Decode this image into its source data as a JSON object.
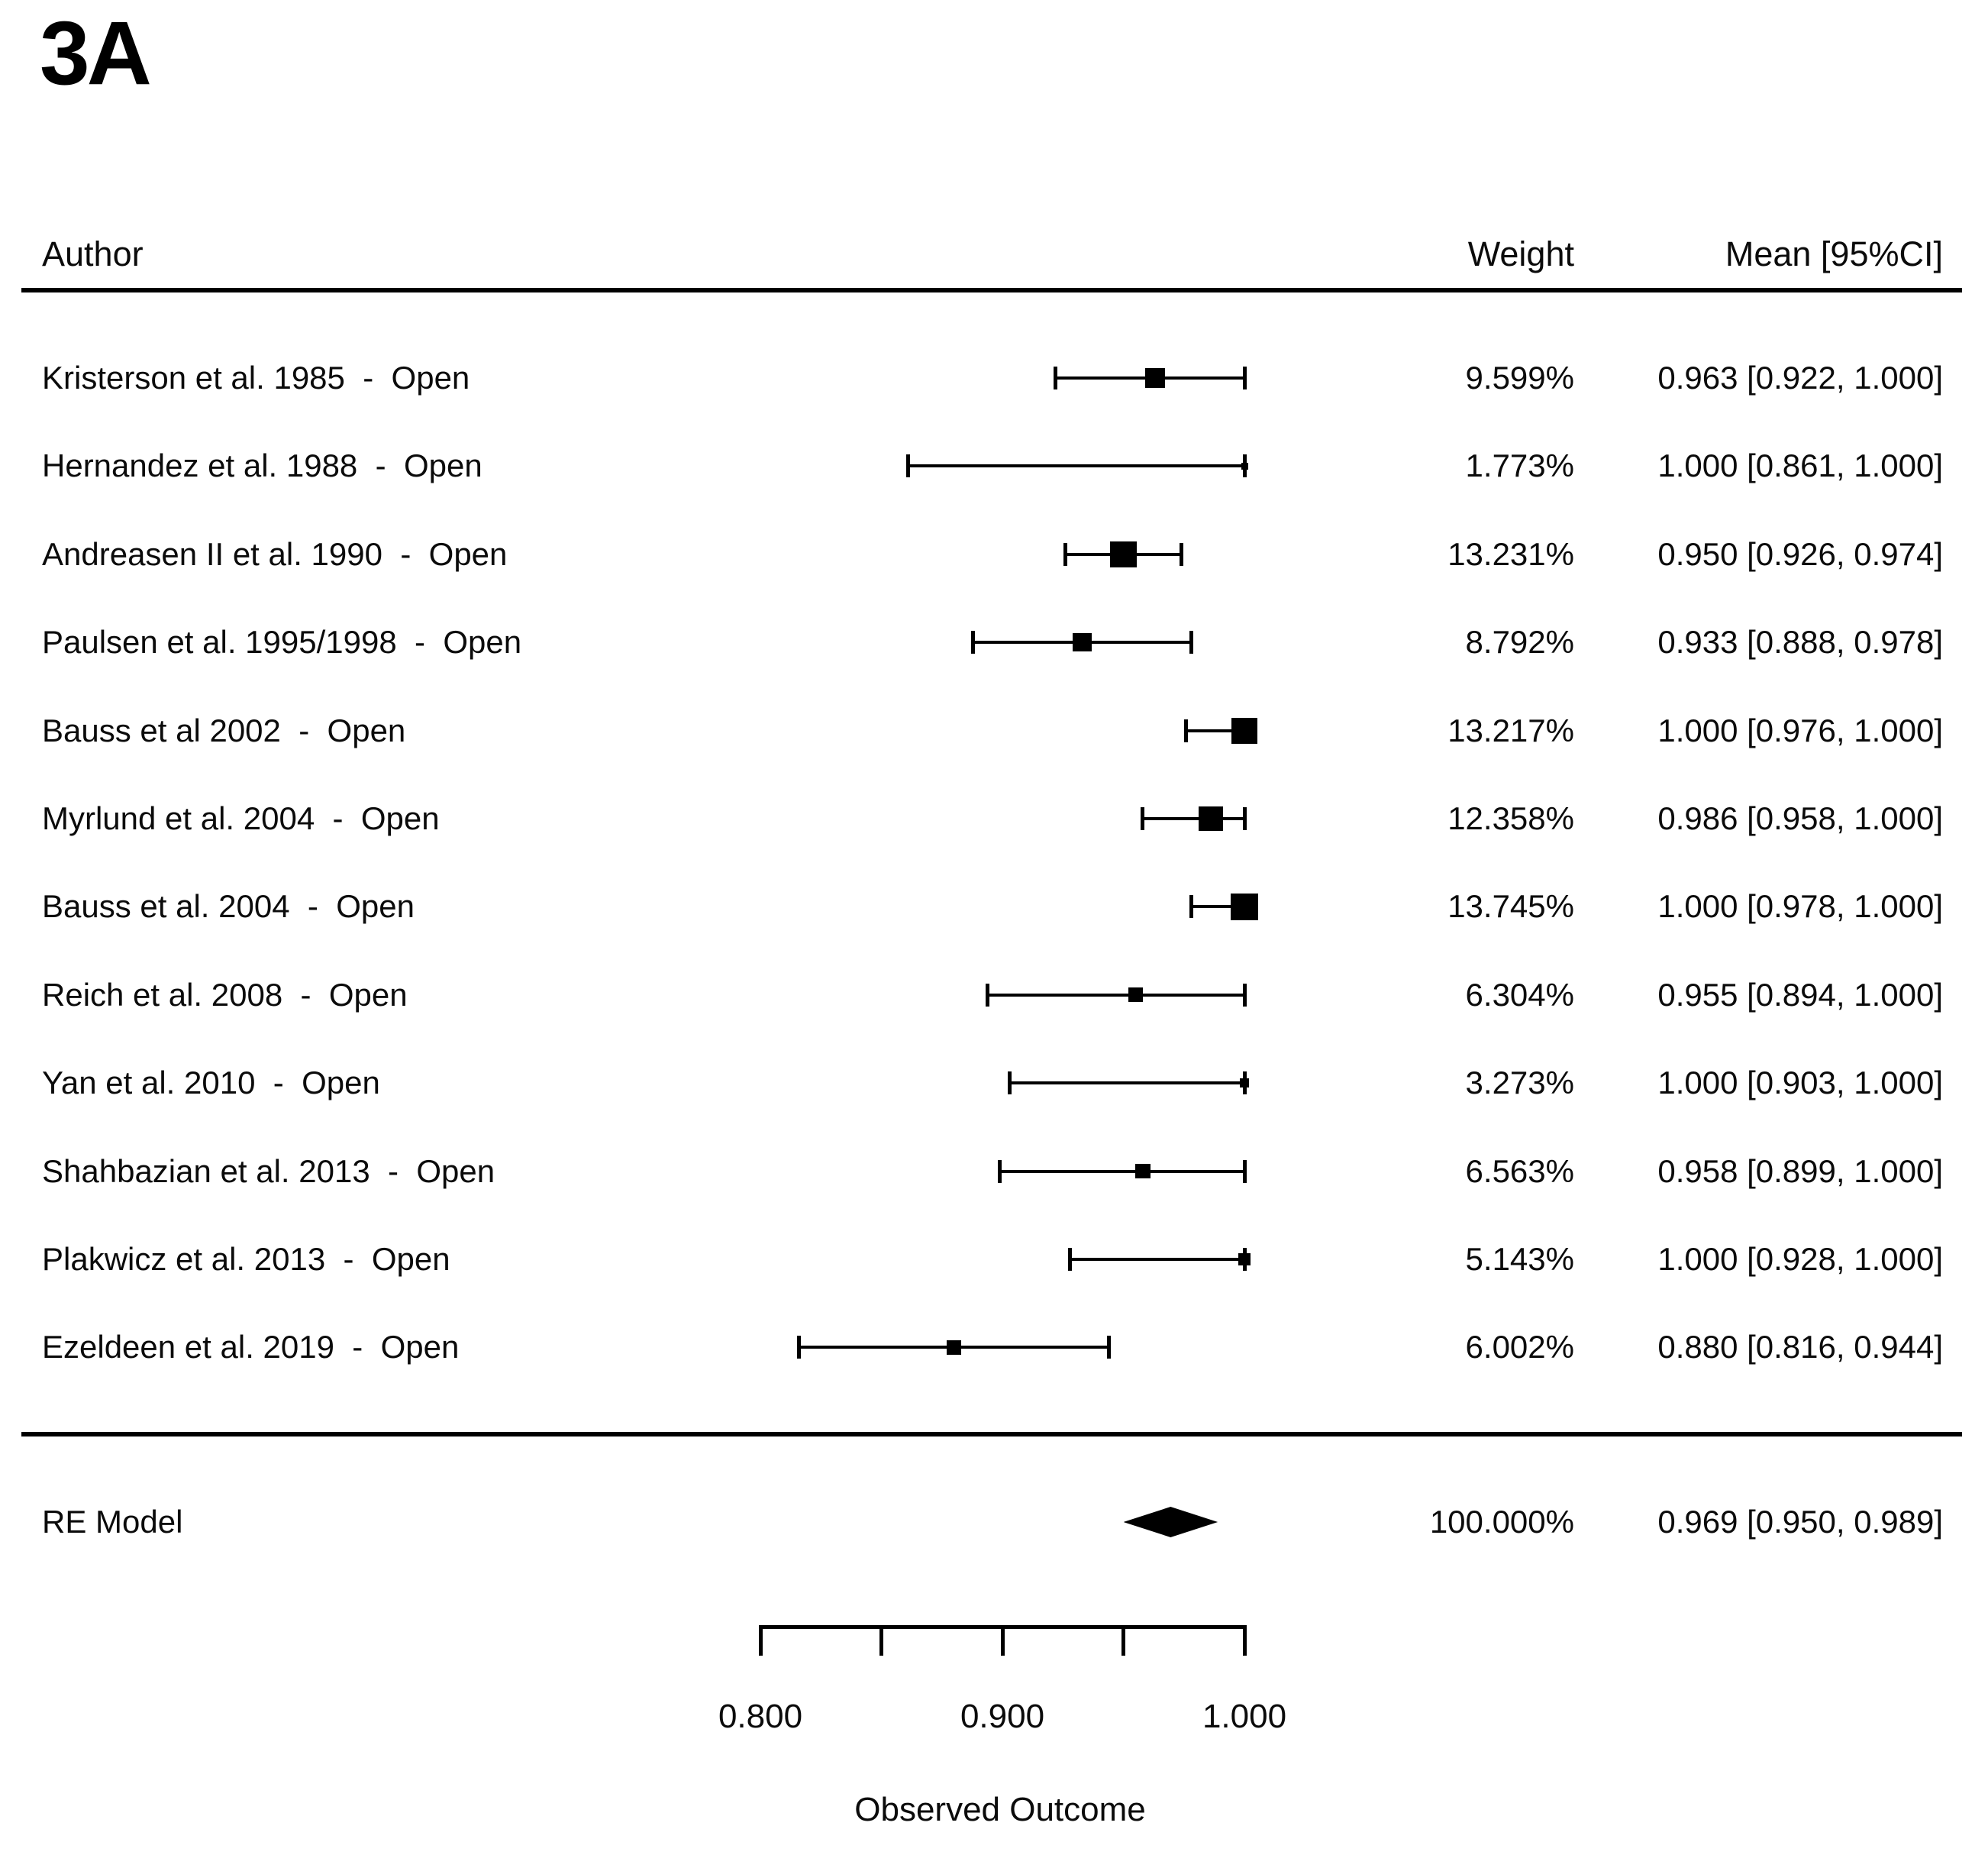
{
  "figure": {
    "label": "3A"
  },
  "table": {
    "headers": {
      "author": "Author",
      "weight": "Weight",
      "mean": "Mean [95%CI]"
    }
  },
  "chart_data": {
    "type": "forest",
    "title": "3A",
    "xlabel": "Observed Outcome",
    "x_axis": {
      "min": 0.8,
      "max": 1.0,
      "ticks": [
        0.8,
        0.85,
        0.9,
        0.95,
        1.0
      ],
      "labeled_ticks": [
        {
          "value": 0.8,
          "label": "0.800"
        },
        {
          "value": 0.9,
          "label": "0.900"
        },
        {
          "value": 1.0,
          "label": "1.000"
        }
      ],
      "grid": false
    },
    "studies": [
      {
        "author": "Kristerson et al. 1985  -  Open",
        "weight": 9.599,
        "weight_label": "9.599%",
        "mean": 0.963,
        "ci_low": 0.922,
        "ci_high": 1.0,
        "mean_label": "0.963 [0.922, 1.000]"
      },
      {
        "author": "Hernandez et al. 1988  -  Open",
        "weight": 1.773,
        "weight_label": "1.773%",
        "mean": 1.0,
        "ci_low": 0.861,
        "ci_high": 1.0,
        "mean_label": "1.000 [0.861, 1.000]"
      },
      {
        "author": "Andreasen II et al. 1990  -  Open",
        "weight": 13.231,
        "weight_label": "13.231%",
        "mean": 0.95,
        "ci_low": 0.926,
        "ci_high": 0.974,
        "mean_label": "0.950 [0.926, 0.974]"
      },
      {
        "author": "Paulsen et al. 1995/1998  -  Open",
        "weight": 8.792,
        "weight_label": "8.792%",
        "mean": 0.933,
        "ci_low": 0.888,
        "ci_high": 0.978,
        "mean_label": "0.933 [0.888, 0.978]"
      },
      {
        "author": "Bauss et al 2002  -  Open",
        "weight": 13.217,
        "weight_label": "13.217%",
        "mean": 1.0,
        "ci_low": 0.976,
        "ci_high": 1.0,
        "mean_label": "1.000 [0.976, 1.000]"
      },
      {
        "author": "Myrlund et al. 2004  -  Open",
        "weight": 12.358,
        "weight_label": "12.358%",
        "mean": 0.986,
        "ci_low": 0.958,
        "ci_high": 1.0,
        "mean_label": "0.986 [0.958, 1.000]"
      },
      {
        "author": "Bauss et al. 2004  -  Open",
        "weight": 13.745,
        "weight_label": "13.745%",
        "mean": 1.0,
        "ci_low": 0.978,
        "ci_high": 1.0,
        "mean_label": "1.000 [0.978, 1.000]"
      },
      {
        "author": "Reich et al. 2008  -  Open",
        "weight": 6.304,
        "weight_label": "6.304%",
        "mean": 0.955,
        "ci_low": 0.894,
        "ci_high": 1.0,
        "mean_label": "0.955 [0.894, 1.000]"
      },
      {
        "author": "Yan et al. 2010  -  Open",
        "weight": 3.273,
        "weight_label": "3.273%",
        "mean": 1.0,
        "ci_low": 0.903,
        "ci_high": 1.0,
        "mean_label": "1.000 [0.903, 1.000]"
      },
      {
        "author": "Shahbazian et al. 2013  -  Open",
        "weight": 6.563,
        "weight_label": "6.563%",
        "mean": 0.958,
        "ci_low": 0.899,
        "ci_high": 1.0,
        "mean_label": "0.958 [0.899, 1.000]"
      },
      {
        "author": "Plakwicz et al. 2013  -  Open",
        "weight": 5.143,
        "weight_label": "5.143%",
        "mean": 1.0,
        "ci_low": 0.928,
        "ci_high": 1.0,
        "mean_label": "1.000 [0.928, 1.000]"
      },
      {
        "author": "Ezeldeen et al. 2019  -  Open",
        "weight": 6.002,
        "weight_label": "6.002%",
        "mean": 0.88,
        "ci_low": 0.816,
        "ci_high": 0.944,
        "mean_label": "0.880 [0.816, 0.944]"
      }
    ],
    "summary": {
      "label": "RE Model",
      "weight": 100.0,
      "weight_label": "100.000%",
      "mean": 0.969,
      "ci_low": 0.95,
      "ci_high": 0.989,
      "mean_label": "0.969 [0.950, 0.989]"
    }
  }
}
